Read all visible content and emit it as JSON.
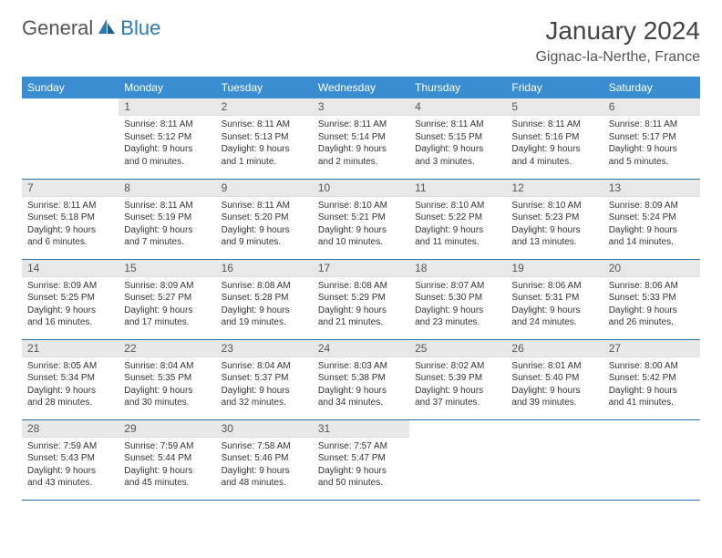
{
  "logo": {
    "general": "General",
    "blue": "Blue"
  },
  "title": "January 2024",
  "location": "Gignac-la-Nerthe, France",
  "colors": {
    "header_bg": "#3a8dd0",
    "header_text": "#ffffff",
    "daynum_bg": "#e8e8e8",
    "border": "#2a6fa5",
    "logo_blue": "#2a7ab8"
  },
  "day_headers": [
    "Sunday",
    "Monday",
    "Tuesday",
    "Wednesday",
    "Thursday",
    "Friday",
    "Saturday"
  ],
  "weeks": [
    [
      {
        "n": "",
        "sr": "",
        "ss": "",
        "dl": ""
      },
      {
        "n": "1",
        "sr": "Sunrise: 8:11 AM",
        "ss": "Sunset: 5:12 PM",
        "dl": "Daylight: 9 hours and 0 minutes."
      },
      {
        "n": "2",
        "sr": "Sunrise: 8:11 AM",
        "ss": "Sunset: 5:13 PM",
        "dl": "Daylight: 9 hours and 1 minute."
      },
      {
        "n": "3",
        "sr": "Sunrise: 8:11 AM",
        "ss": "Sunset: 5:14 PM",
        "dl": "Daylight: 9 hours and 2 minutes."
      },
      {
        "n": "4",
        "sr": "Sunrise: 8:11 AM",
        "ss": "Sunset: 5:15 PM",
        "dl": "Daylight: 9 hours and 3 minutes."
      },
      {
        "n": "5",
        "sr": "Sunrise: 8:11 AM",
        "ss": "Sunset: 5:16 PM",
        "dl": "Daylight: 9 hours and 4 minutes."
      },
      {
        "n": "6",
        "sr": "Sunrise: 8:11 AM",
        "ss": "Sunset: 5:17 PM",
        "dl": "Daylight: 9 hours and 5 minutes."
      }
    ],
    [
      {
        "n": "7",
        "sr": "Sunrise: 8:11 AM",
        "ss": "Sunset: 5:18 PM",
        "dl": "Daylight: 9 hours and 6 minutes."
      },
      {
        "n": "8",
        "sr": "Sunrise: 8:11 AM",
        "ss": "Sunset: 5:19 PM",
        "dl": "Daylight: 9 hours and 7 minutes."
      },
      {
        "n": "9",
        "sr": "Sunrise: 8:11 AM",
        "ss": "Sunset: 5:20 PM",
        "dl": "Daylight: 9 hours and 9 minutes."
      },
      {
        "n": "10",
        "sr": "Sunrise: 8:10 AM",
        "ss": "Sunset: 5:21 PM",
        "dl": "Daylight: 9 hours and 10 minutes."
      },
      {
        "n": "11",
        "sr": "Sunrise: 8:10 AM",
        "ss": "Sunset: 5:22 PM",
        "dl": "Daylight: 9 hours and 11 minutes."
      },
      {
        "n": "12",
        "sr": "Sunrise: 8:10 AM",
        "ss": "Sunset: 5:23 PM",
        "dl": "Daylight: 9 hours and 13 minutes."
      },
      {
        "n": "13",
        "sr": "Sunrise: 8:09 AM",
        "ss": "Sunset: 5:24 PM",
        "dl": "Daylight: 9 hours and 14 minutes."
      }
    ],
    [
      {
        "n": "14",
        "sr": "Sunrise: 8:09 AM",
        "ss": "Sunset: 5:25 PM",
        "dl": "Daylight: 9 hours and 16 minutes."
      },
      {
        "n": "15",
        "sr": "Sunrise: 8:09 AM",
        "ss": "Sunset: 5:27 PM",
        "dl": "Daylight: 9 hours and 17 minutes."
      },
      {
        "n": "16",
        "sr": "Sunrise: 8:08 AM",
        "ss": "Sunset: 5:28 PM",
        "dl": "Daylight: 9 hours and 19 minutes."
      },
      {
        "n": "17",
        "sr": "Sunrise: 8:08 AM",
        "ss": "Sunset: 5:29 PM",
        "dl": "Daylight: 9 hours and 21 minutes."
      },
      {
        "n": "18",
        "sr": "Sunrise: 8:07 AM",
        "ss": "Sunset: 5:30 PM",
        "dl": "Daylight: 9 hours and 23 minutes."
      },
      {
        "n": "19",
        "sr": "Sunrise: 8:06 AM",
        "ss": "Sunset: 5:31 PM",
        "dl": "Daylight: 9 hours and 24 minutes."
      },
      {
        "n": "20",
        "sr": "Sunrise: 8:06 AM",
        "ss": "Sunset: 5:33 PM",
        "dl": "Daylight: 9 hours and 26 minutes."
      }
    ],
    [
      {
        "n": "21",
        "sr": "Sunrise: 8:05 AM",
        "ss": "Sunset: 5:34 PM",
        "dl": "Daylight: 9 hours and 28 minutes."
      },
      {
        "n": "22",
        "sr": "Sunrise: 8:04 AM",
        "ss": "Sunset: 5:35 PM",
        "dl": "Daylight: 9 hours and 30 minutes."
      },
      {
        "n": "23",
        "sr": "Sunrise: 8:04 AM",
        "ss": "Sunset: 5:37 PM",
        "dl": "Daylight: 9 hours and 32 minutes."
      },
      {
        "n": "24",
        "sr": "Sunrise: 8:03 AM",
        "ss": "Sunset: 5:38 PM",
        "dl": "Daylight: 9 hours and 34 minutes."
      },
      {
        "n": "25",
        "sr": "Sunrise: 8:02 AM",
        "ss": "Sunset: 5:39 PM",
        "dl": "Daylight: 9 hours and 37 minutes."
      },
      {
        "n": "26",
        "sr": "Sunrise: 8:01 AM",
        "ss": "Sunset: 5:40 PM",
        "dl": "Daylight: 9 hours and 39 minutes."
      },
      {
        "n": "27",
        "sr": "Sunrise: 8:00 AM",
        "ss": "Sunset: 5:42 PM",
        "dl": "Daylight: 9 hours and 41 minutes."
      }
    ],
    [
      {
        "n": "28",
        "sr": "Sunrise: 7:59 AM",
        "ss": "Sunset: 5:43 PM",
        "dl": "Daylight: 9 hours and 43 minutes."
      },
      {
        "n": "29",
        "sr": "Sunrise: 7:59 AM",
        "ss": "Sunset: 5:44 PM",
        "dl": "Daylight: 9 hours and 45 minutes."
      },
      {
        "n": "30",
        "sr": "Sunrise: 7:58 AM",
        "ss": "Sunset: 5:46 PM",
        "dl": "Daylight: 9 hours and 48 minutes."
      },
      {
        "n": "31",
        "sr": "Sunrise: 7:57 AM",
        "ss": "Sunset: 5:47 PM",
        "dl": "Daylight: 9 hours and 50 minutes."
      },
      {
        "n": "",
        "sr": "",
        "ss": "",
        "dl": ""
      },
      {
        "n": "",
        "sr": "",
        "ss": "",
        "dl": ""
      },
      {
        "n": "",
        "sr": "",
        "ss": "",
        "dl": ""
      }
    ]
  ]
}
